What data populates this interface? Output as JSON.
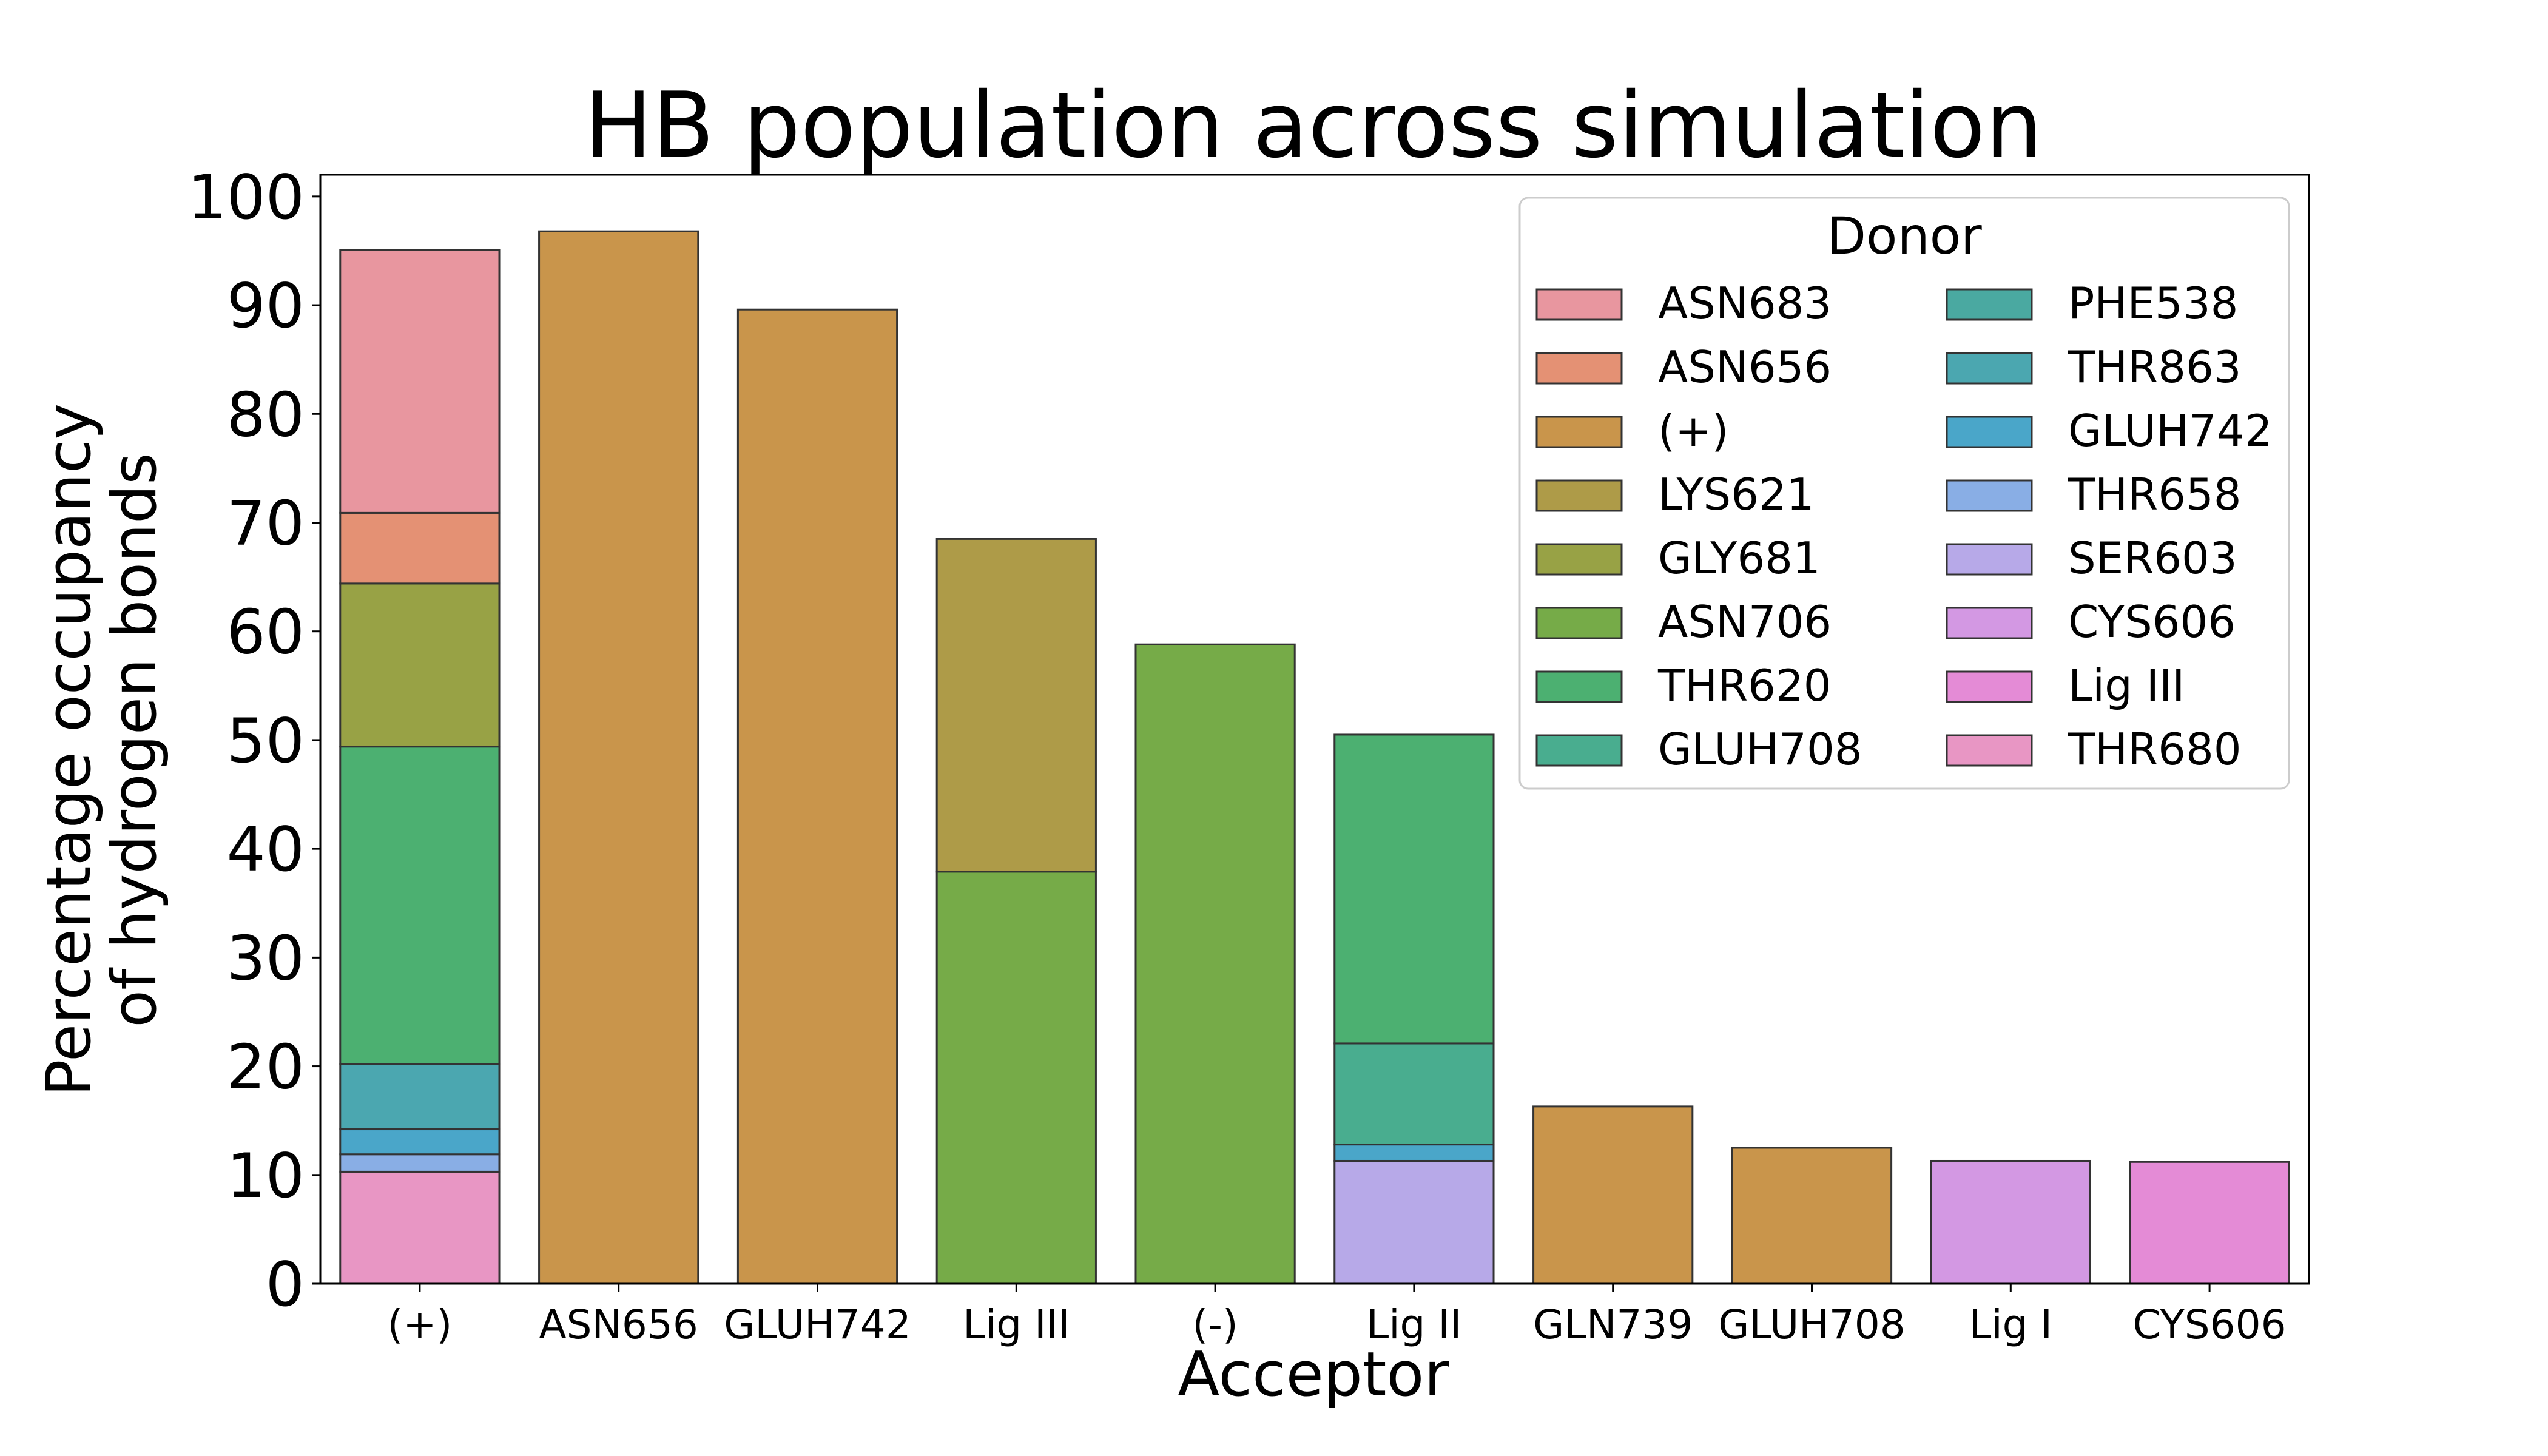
{
  "chart_data": {
    "type": "bar",
    "stacked": true,
    "title": "HB population across simulation",
    "xlabel": "Acceptor",
    "ylabel_lines": [
      "Percentage occupancy",
      "of hydrogen bonds"
    ],
    "ylim": [
      0,
      102
    ],
    "yticks": [
      0,
      10,
      20,
      30,
      40,
      50,
      60,
      70,
      80,
      90,
      100
    ],
    "grid": false,
    "legend": {
      "title": "Donor",
      "placement": "top-right",
      "columns": 2
    },
    "categories": [
      "(+)",
      "ASN656",
      "GLUH742",
      "Lig III",
      "(-)",
      "Lig II",
      "GLN739",
      "GLUH708",
      "Lig I",
      "CYS606"
    ],
    "series": [
      {
        "name": "ASN683",
        "color": "#e8969f",
        "values": [
          24.2,
          0,
          0,
          0,
          0,
          0,
          0,
          0,
          0,
          0
        ]
      },
      {
        "name": "ASN656",
        "color": "#e49174",
        "values": [
          6.5,
          0,
          0,
          0,
          0,
          0,
          0,
          0,
          0,
          0
        ]
      },
      {
        "name": "(+)",
        "color": "#c9954b",
        "values": [
          0,
          96.8,
          89.6,
          0,
          0,
          0,
          16.3,
          12.5,
          0,
          0
        ]
      },
      {
        "name": "LYS621",
        "color": "#ae9b48",
        "values": [
          0,
          0,
          0,
          30.6,
          0,
          0,
          0,
          0,
          0,
          0
        ]
      },
      {
        "name": "GLY681",
        "color": "#98a245",
        "values": [
          15.0,
          0,
          0,
          0,
          0,
          0,
          0,
          0,
          0,
          0
        ]
      },
      {
        "name": "ASN706",
        "color": "#76ab48",
        "values": [
          0,
          0,
          0,
          37.9,
          58.8,
          0,
          0,
          0,
          0,
          0
        ]
      },
      {
        "name": "THR620",
        "color": "#4cb071",
        "values": [
          29.2,
          0,
          0,
          0,
          0,
          28.4,
          0,
          0,
          0,
          0
        ]
      },
      {
        "name": "GLUH708",
        "color": "#49ad8f",
        "values": [
          0,
          0,
          0,
          0,
          0,
          9.3,
          0,
          0,
          0,
          0
        ]
      },
      {
        "name": "PHE538",
        "color": "#4aa9a1",
        "values": [
          0,
          0,
          0,
          0,
          0,
          0,
          0,
          0,
          0,
          0
        ]
      },
      {
        "name": "THR863",
        "color": "#4ba7b0",
        "values": [
          6.0,
          0,
          0,
          0,
          0,
          0,
          0,
          0,
          0,
          0
        ]
      },
      {
        "name": "GLUH742",
        "color": "#4aa6c9",
        "values": [
          2.3,
          0,
          0,
          0,
          0,
          1.5,
          0,
          0,
          0,
          0
        ]
      },
      {
        "name": "THR658",
        "color": "#89aee5",
        "values": [
          1.6,
          0,
          0,
          0,
          0,
          0,
          0,
          0,
          0,
          0
        ]
      },
      {
        "name": "SER603",
        "color": "#b7a9e8",
        "values": [
          0,
          0,
          0,
          0,
          0,
          11.3,
          0,
          0,
          0,
          0
        ]
      },
      {
        "name": "CYS606",
        "color": "#d398e3",
        "values": [
          0,
          0,
          0,
          0,
          0,
          0,
          0,
          0,
          11.3,
          0
        ]
      },
      {
        "name": "Lig III",
        "color": "#e48bd6",
        "values": [
          0,
          0,
          0,
          0,
          0,
          0,
          0,
          0,
          0,
          11.2
        ]
      },
      {
        "name": "THR680",
        "color": "#e896c4",
        "values": [
          10.3,
          0,
          0,
          0,
          0,
          0,
          0,
          0,
          0,
          0
        ]
      }
    ]
  }
}
